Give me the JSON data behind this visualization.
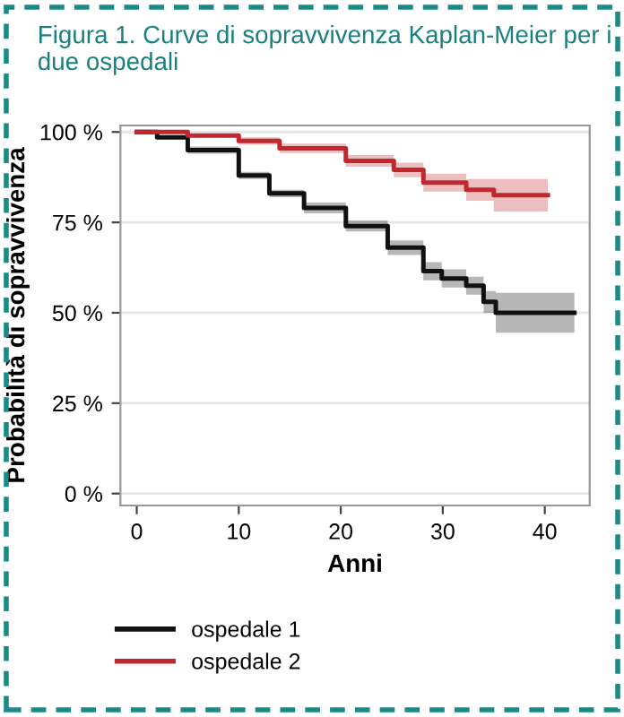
{
  "chart_data": {
    "type": "step",
    "title": "Figura 1. Curve di sopravvivenza Kaplan-Meier per i due ospedali",
    "xlabel": "Anni",
    "ylabel": "Probabilità di sopravvivenza",
    "xlim": [
      -1.6,
      44.4
    ],
    "xticks": [
      0,
      10,
      20,
      30,
      40
    ],
    "ylim": [
      -3.3,
      101.8
    ],
    "yticks": [
      {
        "value": 0,
        "label": "0 %"
      },
      {
        "value": 25,
        "label": "25 %"
      },
      {
        "value": 50,
        "label": "50 %"
      },
      {
        "value": 75,
        "label": "75 %"
      },
      {
        "value": 100,
        "label": "100 %"
      }
    ],
    "grid": "y",
    "legend": "bottom left",
    "line_style": "solid",
    "marker": "none",
    "series": [
      {
        "name": "ospedale 1",
        "color": "#111111",
        "x": [
          0,
          2,
          5,
          10,
          13,
          16.4,
          20.5,
          24.6,
          28.1,
          29.9,
          32.3,
          34,
          35.2,
          42.9
        ],
        "values": [
          100,
          98.5,
          95,
          88,
          83,
          79,
          74,
          68,
          61.5,
          59.5,
          57.5,
          53,
          50,
          50
        ],
        "lower": [
          100,
          98,
          94,
          87,
          82,
          77.5,
          72.5,
          66,
          59,
          57,
          55,
          50,
          44.5,
          44.5
        ],
        "upper": [
          100,
          99,
          96,
          89,
          84,
          80.5,
          75.5,
          70,
          64,
          62,
          60,
          56,
          55.5,
          55.5
        ]
      },
      {
        "name": "ospedale 2",
        "color": "#c0282d",
        "x": [
          0,
          5,
          10,
          14,
          20.5,
          25.2,
          28.1,
          32.3,
          35,
          40.3
        ],
        "values": [
          100,
          99,
          97.5,
          95.5,
          92,
          89.5,
          86,
          84,
          82.5,
          82.5
        ],
        "lower": [
          100,
          98.5,
          96.5,
          94.2,
          90.4,
          87.5,
          83.5,
          81,
          78,
          78
        ],
        "upper": [
          100,
          99.5,
          98.5,
          96.8,
          93.6,
          91.5,
          88.5,
          87,
          87,
          87
        ]
      }
    ]
  }
}
